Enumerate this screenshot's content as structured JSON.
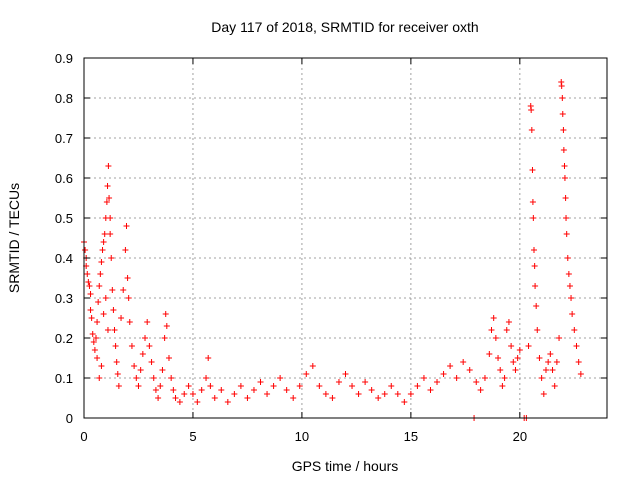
{
  "chart_data": {
    "type": "scatter",
    "title": "Day 117 of 2018, SRMTID for receiver oxth",
    "xlabel": "GPS time / hours",
    "ylabel": "SRMTID / TECUs",
    "xlim": [
      0,
      24
    ],
    "ylim": [
      0,
      0.9
    ],
    "xticks": [
      "0",
      "5",
      "10",
      "15",
      "20"
    ],
    "yticks": [
      "0",
      "0.1",
      "0.2",
      "0.3",
      "0.4",
      "0.5",
      "0.6",
      "0.7",
      "0.8",
      "0.9"
    ],
    "grid": true,
    "marker": "plus",
    "color": "#ff0000",
    "series": [
      {
        "name": "SRMTID",
        "points": [
          [
            0.0,
            0.44
          ],
          [
            0.05,
            0.42
          ],
          [
            0.1,
            0.4
          ],
          [
            0.1,
            0.38
          ],
          [
            0.15,
            0.36
          ],
          [
            0.2,
            0.34
          ],
          [
            0.25,
            0.33
          ],
          [
            0.3,
            0.31
          ],
          [
            0.3,
            0.27
          ],
          [
            0.35,
            0.25
          ],
          [
            0.4,
            0.21
          ],
          [
            0.45,
            0.19
          ],
          [
            0.5,
            0.17
          ],
          [
            0.55,
            0.2
          ],
          [
            0.6,
            0.24
          ],
          [
            0.65,
            0.29
          ],
          [
            0.7,
            0.33
          ],
          [
            0.75,
            0.36
          ],
          [
            0.8,
            0.39
          ],
          [
            0.85,
            0.42
          ],
          [
            0.9,
            0.44
          ],
          [
            0.95,
            0.46
          ],
          [
            1.0,
            0.5
          ],
          [
            1.05,
            0.54
          ],
          [
            1.08,
            0.58
          ],
          [
            1.12,
            0.63
          ],
          [
            1.15,
            0.55
          ],
          [
            1.2,
            0.5
          ],
          [
            1.2,
            0.46
          ],
          [
            1.25,
            0.4
          ],
          [
            1.3,
            0.32
          ],
          [
            1.35,
            0.27
          ],
          [
            1.4,
            0.22
          ],
          [
            1.45,
            0.18
          ],
          [
            1.5,
            0.14
          ],
          [
            1.55,
            0.11
          ],
          [
            1.6,
            0.08
          ],
          [
            0.6,
            0.15
          ],
          [
            0.7,
            0.1
          ],
          [
            0.8,
            0.13
          ],
          [
            0.9,
            0.26
          ],
          [
            1.0,
            0.3
          ],
          [
            1.1,
            0.22
          ],
          [
            1.7,
            0.25
          ],
          [
            1.8,
            0.32
          ],
          [
            1.9,
            0.42
          ],
          [
            1.95,
            0.48
          ],
          [
            2.0,
            0.35
          ],
          [
            2.05,
            0.3
          ],
          [
            2.1,
            0.24
          ],
          [
            2.2,
            0.18
          ],
          [
            2.3,
            0.13
          ],
          [
            2.4,
            0.1
          ],
          [
            2.5,
            0.08
          ],
          [
            2.6,
            0.12
          ],
          [
            2.7,
            0.16
          ],
          [
            2.8,
            0.2
          ],
          [
            2.9,
            0.24
          ],
          [
            3.0,
            0.18
          ],
          [
            3.1,
            0.14
          ],
          [
            3.2,
            0.1
          ],
          [
            3.3,
            0.07
          ],
          [
            3.4,
            0.05
          ],
          [
            3.5,
            0.08
          ],
          [
            3.6,
            0.12
          ],
          [
            3.7,
            0.2
          ],
          [
            3.75,
            0.26
          ],
          [
            3.8,
            0.23
          ],
          [
            3.9,
            0.15
          ],
          [
            4.0,
            0.1
          ],
          [
            4.1,
            0.07
          ],
          [
            4.2,
            0.05
          ],
          [
            4.4,
            0.04
          ],
          [
            4.6,
            0.06
          ],
          [
            4.8,
            0.08
          ],
          [
            5.0,
            0.06
          ],
          [
            5.2,
            0.04
          ],
          [
            5.4,
            0.07
          ],
          [
            5.6,
            0.1
          ],
          [
            5.7,
            0.15
          ],
          [
            5.8,
            0.08
          ],
          [
            6.0,
            0.05
          ],
          [
            6.3,
            0.07
          ],
          [
            6.6,
            0.04
          ],
          [
            6.9,
            0.06
          ],
          [
            7.2,
            0.08
          ],
          [
            7.5,
            0.05
          ],
          [
            7.8,
            0.07
          ],
          [
            8.1,
            0.09
          ],
          [
            8.4,
            0.06
          ],
          [
            8.7,
            0.08
          ],
          [
            9.0,
            0.1
          ],
          [
            9.3,
            0.07
          ],
          [
            9.6,
            0.05
          ],
          [
            9.9,
            0.08
          ],
          [
            10.2,
            0.11
          ],
          [
            10.5,
            0.13
          ],
          [
            10.8,
            0.08
          ],
          [
            11.1,
            0.06
          ],
          [
            11.4,
            0.05
          ],
          [
            11.7,
            0.09
          ],
          [
            12.0,
            0.11
          ],
          [
            12.3,
            0.08
          ],
          [
            12.6,
            0.06
          ],
          [
            12.9,
            0.09
          ],
          [
            13.2,
            0.07
          ],
          [
            13.5,
            0.05
          ],
          [
            13.8,
            0.06
          ],
          [
            14.1,
            0.08
          ],
          [
            14.4,
            0.06
          ],
          [
            14.7,
            0.04
          ],
          [
            15.0,
            0.06
          ],
          [
            15.3,
            0.08
          ],
          [
            15.6,
            0.1
          ],
          [
            15.9,
            0.07
          ],
          [
            16.2,
            0.09
          ],
          [
            16.5,
            0.11
          ],
          [
            16.8,
            0.13
          ],
          [
            17.1,
            0.1
          ],
          [
            17.4,
            0.14
          ],
          [
            17.7,
            0.12
          ],
          [
            17.9,
            0.0
          ],
          [
            18.0,
            0.09
          ],
          [
            18.2,
            0.07
          ],
          [
            18.4,
            0.1
          ],
          [
            18.6,
            0.16
          ],
          [
            18.7,
            0.22
          ],
          [
            18.8,
            0.25
          ],
          [
            18.9,
            0.2
          ],
          [
            19.0,
            0.15
          ],
          [
            19.1,
            0.12
          ],
          [
            19.2,
            0.08
          ],
          [
            19.3,
            0.1
          ],
          [
            19.4,
            0.22
          ],
          [
            19.5,
            0.24
          ],
          [
            19.6,
            0.18
          ],
          [
            19.7,
            0.14
          ],
          [
            19.8,
            0.12
          ],
          [
            19.9,
            0.15
          ],
          [
            20.0,
            0.17
          ],
          [
            20.2,
            0.0
          ],
          [
            20.3,
            0.0
          ],
          [
            20.4,
            0.18
          ],
          [
            20.5,
            0.78
          ],
          [
            20.52,
            0.77
          ],
          [
            20.55,
            0.72
          ],
          [
            20.58,
            0.62
          ],
          [
            20.6,
            0.54
          ],
          [
            20.62,
            0.5
          ],
          [
            20.65,
            0.42
          ],
          [
            20.68,
            0.38
          ],
          [
            20.7,
            0.33
          ],
          [
            20.75,
            0.28
          ],
          [
            20.8,
            0.22
          ],
          [
            20.9,
            0.15
          ],
          [
            21.0,
            0.1
          ],
          [
            21.1,
            0.06
          ],
          [
            21.2,
            0.12
          ],
          [
            21.3,
            0.14
          ],
          [
            21.4,
            0.16
          ],
          [
            21.5,
            0.12
          ],
          [
            21.6,
            0.08
          ],
          [
            21.7,
            0.14
          ],
          [
            21.8,
            0.2
          ],
          [
            21.9,
            0.84
          ],
          [
            21.92,
            0.83
          ],
          [
            21.95,
            0.8
          ],
          [
            21.97,
            0.76
          ],
          [
            22.0,
            0.72
          ],
          [
            22.02,
            0.67
          ],
          [
            22.05,
            0.63
          ],
          [
            22.07,
            0.6
          ],
          [
            22.1,
            0.55
          ],
          [
            22.12,
            0.5
          ],
          [
            22.15,
            0.46
          ],
          [
            22.2,
            0.4
          ],
          [
            22.25,
            0.36
          ],
          [
            22.3,
            0.33
          ],
          [
            22.35,
            0.3
          ],
          [
            22.4,
            0.26
          ],
          [
            22.5,
            0.22
          ],
          [
            22.6,
            0.18
          ],
          [
            22.7,
            0.14
          ],
          [
            22.8,
            0.11
          ]
        ]
      }
    ]
  }
}
